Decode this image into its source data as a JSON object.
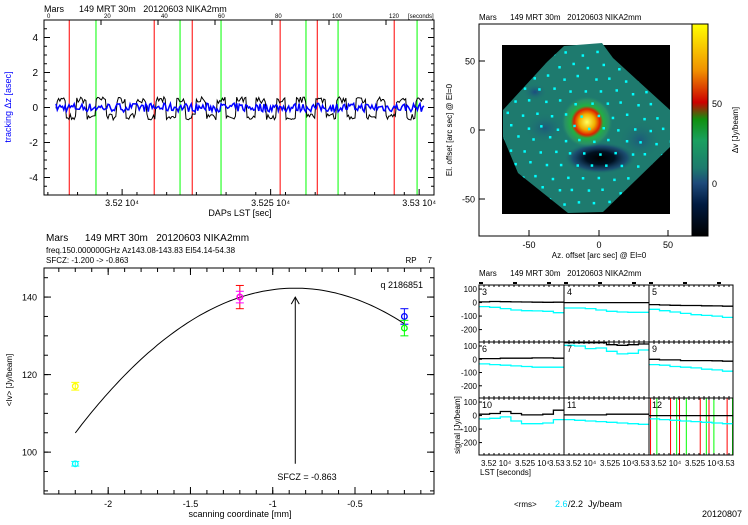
{
  "colors": {
    "red": "#ff0000",
    "green": "#00ff00",
    "blue": "#0000ff",
    "cyan": "#00ffff",
    "magenta": "#ff00ff",
    "yellow": "#ffff00"
  },
  "tracking": {
    "title": "Mars      149 MRT 30m   20120603 NIKA2mm",
    "top_ticks": [
      "0",
      "20",
      "40",
      "60",
      "80",
      "100",
      "120"
    ],
    "top_unit": "[seconds]"
  },
  "focus": {
    "title": "Mars      149 MRT 30m   20120603 NIKA2mm",
    "info": "freq.150.000000GHz  Az143.08-143.83 El54.14-54.38",
    "sfcz_line": "SFCZ: -1.200 -> -0.863",
    "rp": "RP     7",
    "q": "q 2186851",
    "arrow_label": "SFCZ = -0.863"
  },
  "map": {
    "title": "Mars      149 MRT 30m   20120603 NIKA2mm",
    "colorbar_label": "Δv  [Jy/beam]",
    "colorbar_ticks": [
      "50",
      "0"
    ],
    "colorbar_range": [
      -33,
      100
    ]
  },
  "subplots": {
    "title": "Mars      149 MRT 30m   20120603 NIKA2mm",
    "ylabel": "signal [Jy/beam]",
    "xlabel": "LST [seconds]",
    "ytick_labels": [
      "100",
      "0",
      "-100",
      "-200"
    ],
    "xtick_labels": [
      "3.52 10⁴",
      "3.525 10⁴",
      "3.53"
    ],
    "rms_label": "<rms>",
    "rms_value": "2.6",
    "rms_rest": "/2.2  Jy/beam",
    "date": "20120807"
  },
  "chart_data": [
    {
      "type": "line",
      "xlabel": "DAPs LST [sec]",
      "ylabel": "tracking Δz [asec]",
      "xlim": [
        35173.7,
        35305
      ],
      "ylim": [
        -5,
        5
      ],
      "xtick_values": [
        35200,
        35250,
        35300
      ],
      "xtick_labels": [
        "3.52 10⁴",
        "3.525 10⁴",
        "3.53 10⁴"
      ],
      "ytick_labels": [
        "-4",
        "-2",
        "0",
        "2",
        "4"
      ],
      "series_colors": [
        "#000000",
        "#0000ff"
      ],
      "black_amplitude": 0.6,
      "blue_amplitude": 0.25,
      "red_lines": [
        35182.2,
        35210.8,
        35223.6,
        35253.2,
        35265.7,
        35291.6
      ],
      "green_lines": [
        35191.2,
        35219.5,
        35233.3,
        35261.9,
        35272.7,
        35299.3
      ]
    },
    {
      "type": "scatter",
      "xlabel": "scanning coordinate [mm]",
      "ylabel": "<Iv> [Jy/beam]",
      "xlim": [
        -2.39,
        -0.02
      ],
      "ylim": [
        89.2,
        147.5
      ],
      "xtick_labels": [
        "-2",
        "-1.5",
        "-1",
        "-0.5"
      ],
      "xtick_values": [
        -2,
        -1.5,
        -1,
        -0.5
      ],
      "ytick_labels": [
        "100",
        "120",
        "140"
      ],
      "ytick_values": [
        100,
        120,
        140
      ],
      "points": [
        {
          "x": -2.2,
          "y": 117,
          "err": 1,
          "color": "#ffff00"
        },
        {
          "x": -2.2,
          "y": 97,
          "err": 0.6,
          "color": "#00ffff"
        },
        {
          "x": -1.2,
          "y": 140,
          "err": 3,
          "color": "#ff0000"
        },
        {
          "x": -1.2,
          "y": 140,
          "err": 1.5,
          "color": "#ff00ff"
        },
        {
          "x": -0.2,
          "y": 135,
          "err": 2,
          "color": "#0000ff"
        },
        {
          "x": -0.2,
          "y": 132,
          "err": 2,
          "color": "#00ff00"
        }
      ],
      "fit": {
        "type": "parabola",
        "peak_x": -0.863,
        "peak_y": 142.3,
        "a": -20.9,
        "x_range": [
          -2.2,
          -0.2
        ]
      },
      "arrow": {
        "x": -0.863,
        "y_from": 97,
        "y_to": 140
      }
    },
    {
      "type": "heatmap",
      "xlabel": "Az. offset [arc sec] @ El=0",
      "ylabel": "El. offset [arc sec] @ El=0",
      "xlim": [
        -85,
        68
      ],
      "ylim": [
        -76,
        77
      ],
      "xtick_labels": [
        "-50",
        "0",
        "50"
      ],
      "ytick_labels": [
        "50",
        "0",
        "-50"
      ],
      "source_peak": {
        "x": -8,
        "y": 5,
        "value": 90
      },
      "negative_hole": {
        "x": 0,
        "y": -22,
        "value": -30
      }
    },
    {
      "type": "line",
      "xlim": [
        35180,
        35300
      ],
      "ylim": [
        -292,
        130
      ],
      "panels": [
        {
          "label": "3",
          "black": [
            5,
            8,
            6,
            5,
            4,
            3,
            2,
            3
          ],
          "cyan": [
            -30,
            -35,
            -45,
            -55,
            -60,
            -62,
            -65,
            -75
          ]
        },
        {
          "label": "4",
          "black": [
            0,
            0,
            0,
            0,
            0,
            0,
            0,
            0
          ],
          "cyan": [
            -40,
            -40,
            -45,
            -55,
            -65,
            -70,
            -72,
            -72
          ]
        },
        {
          "label": "5",
          "black": [
            -15,
            -18,
            -20,
            -22,
            -22,
            -24,
            -25,
            -27
          ],
          "cyan": [
            -50,
            -60,
            -70,
            -80,
            -90,
            -95,
            -100,
            -110
          ]
        },
        {
          "label": "6",
          "black": [
            5,
            5,
            8,
            8,
            8,
            10,
            10,
            8
          ],
          "cyan": [
            -35,
            -40,
            -45,
            -50,
            -55,
            -60,
            -60,
            -60
          ]
        },
        {
          "label": "7",
          "black": [
            125,
            125,
            125,
            125,
            110,
            105,
            110,
            115
          ],
          "cyan": [
            105,
            100,
            80,
            85,
            60,
            40,
            45,
            70
          ]
        },
        {
          "label": "9",
          "black": [
            0,
            -5,
            -5,
            -10,
            -10,
            -10,
            -12,
            -15
          ],
          "cyan": [
            -40,
            -45,
            -55,
            -60,
            -65,
            -75,
            -80,
            -90
          ]
        },
        {
          "label": "10",
          "black": [
            10,
            15,
            30,
            15,
            5,
            5,
            10,
            40
          ],
          "cyan": [
            -25,
            -20,
            -10,
            -40,
            -60,
            -60,
            -55,
            -30
          ]
        },
        {
          "label": "11",
          "black": [
            5,
            5,
            5,
            5,
            10,
            10,
            10,
            10
          ],
          "cyan": [
            -30,
            -35,
            -40,
            -45,
            -50,
            -55,
            -60,
            -65
          ]
        },
        {
          "label": "12",
          "black": [
            0,
            0,
            0,
            0,
            0,
            0,
            0,
            0
          ],
          "cyan": [
            -25,
            -30,
            -35,
            -40,
            -45,
            -50,
            -55,
            -60
          ]
        }
      ]
    }
  ]
}
